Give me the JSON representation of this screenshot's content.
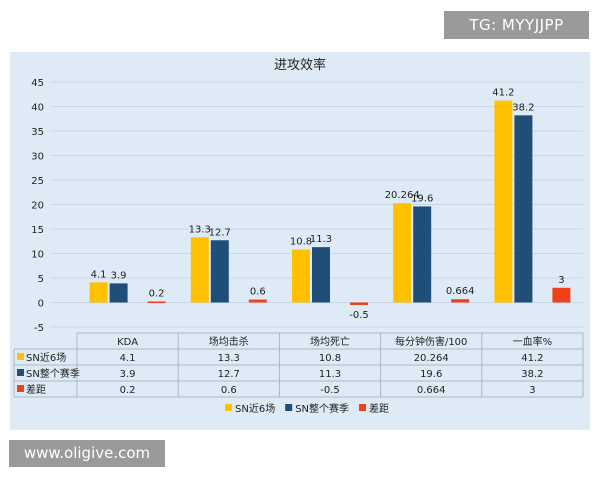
{
  "watermarks": {
    "top": "TG: MYYJJPP",
    "bottom": "www.oligive.com"
  },
  "colors": {
    "background": "#deebf6",
    "grid": "#c9d6e3",
    "table_lines": "#a9b8c8",
    "text": "#222222"
  },
  "chart_data": {
    "type": "bar",
    "title": "进攻效率",
    "categories": [
      "KDA",
      "场均击杀",
      "场均死亡",
      "每分钟伤害/100",
      "一血率%"
    ],
    "series": [
      {
        "name": "SN近6场",
        "color": "#ffc000",
        "values": [
          4.1,
          13.3,
          10.8,
          20.264,
          41.2
        ],
        "labels": [
          "4.1",
          "13.3",
          "10.8",
          "20.264",
          "41.2"
        ]
      },
      {
        "name": "SN整个赛季",
        "color": "#1f4e79",
        "values": [
          3.9,
          12.7,
          11.3,
          19.6,
          38.2
        ],
        "labels": [
          "3.9",
          "12.7",
          "11.3",
          "19.6",
          "38.2"
        ]
      },
      {
        "name": "差距",
        "color": "#f0401a",
        "values": [
          0.2,
          0.6,
          -0.5,
          0.664,
          3
        ],
        "labels": [
          "0.2",
          "0.6",
          "-0.5",
          "0.664",
          "3"
        ]
      }
    ],
    "ylim": [
      -5,
      45
    ],
    "yticks": [
      "-5",
      "0",
      "5",
      "10",
      "15",
      "20",
      "25",
      "30",
      "35",
      "40",
      "45"
    ],
    "ytick_values": [
      -5,
      0,
      5,
      10,
      15,
      20,
      25,
      30,
      35,
      40,
      45
    ],
    "grid": true,
    "data_table": true,
    "legend_position": "bottom"
  }
}
